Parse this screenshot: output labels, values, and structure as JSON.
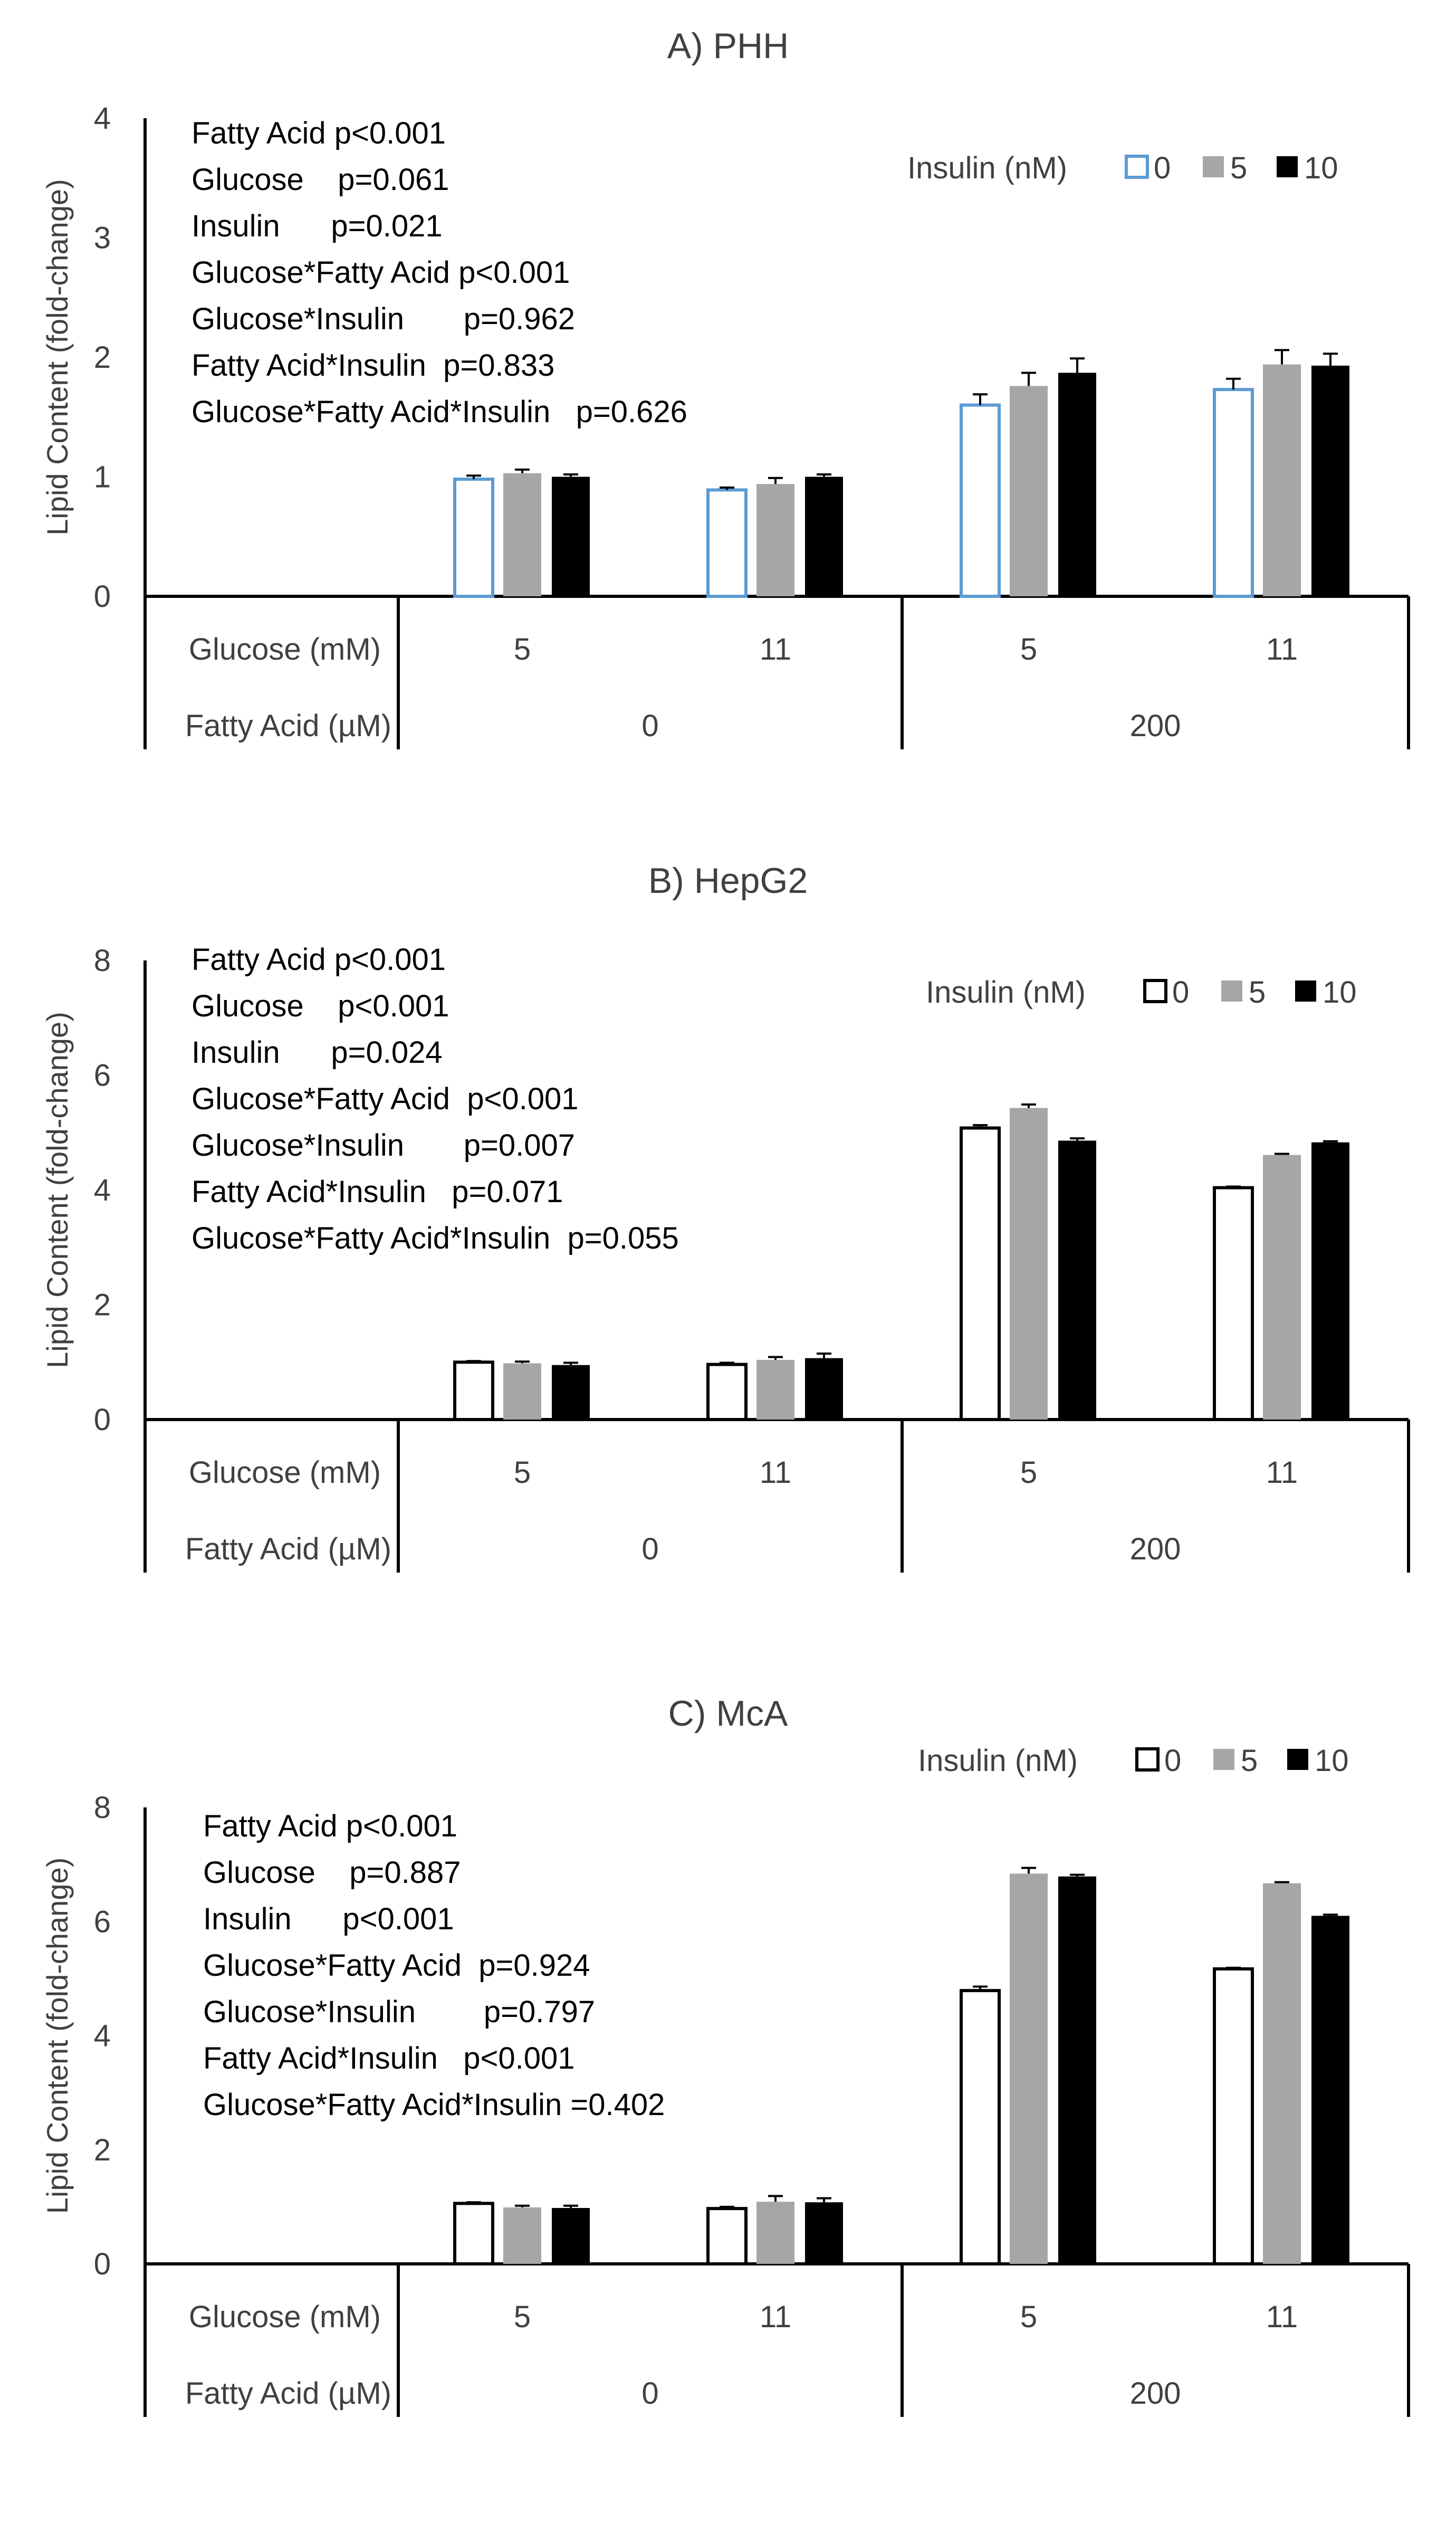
{
  "chart_data": [
    {
      "type": "bar",
      "title": "A) PHH",
      "ylabel": "Lipid Content (fold-change)",
      "ylim": [
        0,
        4
      ],
      "yticks": [
        "0",
        "1",
        "2",
        "3",
        "4"
      ],
      "categories": [
        "5",
        "11",
        "5",
        "11"
      ],
      "category_axis_label": "Glucose (mM)",
      "group_axis_label": "Fatty Acid (µM)",
      "groups": [
        "0",
        "200"
      ],
      "legend_title": "Insulin (nM)",
      "legend_placement": "top-right",
      "zero_bar_stroke": "#5B9BD5",
      "series": [
        {
          "name": "0",
          "values": [
            0.98,
            0.89,
            1.6,
            1.73
          ],
          "errors": [
            0.03,
            0.02,
            0.09,
            0.09
          ]
        },
        {
          "name": "5",
          "values": [
            1.03,
            0.94,
            1.76,
            1.94
          ],
          "errors": [
            0.03,
            0.05,
            0.11,
            0.12
          ]
        },
        {
          "name": "10",
          "values": [
            1.0,
            1.0,
            1.87,
            1.93
          ],
          "errors": [
            0.02,
            0.02,
            0.12,
            0.1
          ]
        }
      ],
      "annotations": [
        "Fatty Acid p<0.001",
        "Glucose    p=0.061",
        "Insulin      p=0.021",
        "Glucose*Fatty Acid p<0.001",
        "Glucose*Insulin       p=0.962",
        "Fatty Acid*Insulin  p=0.833",
        "Glucose*Fatty Acid*Insulin   p=0.626"
      ]
    },
    {
      "type": "bar",
      "title": "B) HepG2",
      "ylabel": "Lipid Content (fold-change)",
      "ylim": [
        0,
        8
      ],
      "yticks": [
        "0",
        "2",
        "4",
        "6",
        "8"
      ],
      "categories": [
        "5",
        "11",
        "5",
        "11"
      ],
      "category_axis_label": "Glucose (mM)",
      "group_axis_label": "Fatty Acid (µM)",
      "groups": [
        "0",
        "200"
      ],
      "legend_title": "Insulin (nM)",
      "legend_placement": "top-right",
      "zero_bar_stroke": "#000000",
      "series": [
        {
          "name": "0",
          "values": [
            1.0,
            0.96,
            5.08,
            4.04
          ],
          "errors": [
            0.02,
            0.03,
            0.05,
            0.02
          ]
        },
        {
          "name": "5",
          "values": [
            0.98,
            1.04,
            5.43,
            4.61
          ],
          "errors": [
            0.03,
            0.05,
            0.06,
            0.02
          ]
        },
        {
          "name": "10",
          "values": [
            0.95,
            1.07,
            4.86,
            4.83
          ],
          "errors": [
            0.04,
            0.08,
            0.04,
            0.02
          ]
        }
      ],
      "annotations": [
        "Fatty Acid p<0.001",
        "Glucose    p<0.001",
        "Insulin      p=0.024",
        "Glucose*Fatty Acid  p<0.001",
        "Glucose*Insulin       p=0.007",
        "Fatty Acid*Insulin   p=0.071",
        "Glucose*Fatty Acid*Insulin  p=0.055"
      ]
    },
    {
      "type": "bar",
      "title": "C) McA",
      "ylabel": "Lipid Content (fold-change)",
      "ylim": [
        0,
        8
      ],
      "yticks": [
        "0",
        "2",
        "4",
        "6",
        "8"
      ],
      "categories": [
        "5",
        "11",
        "5",
        "11"
      ],
      "category_axis_label": "Glucose (mM)",
      "group_axis_label": "Fatty Acid (µM)",
      "groups": [
        "0",
        "200"
      ],
      "legend_title": "Insulin (nM)",
      "legend_placement": "top-right",
      "zero_bar_stroke": "#000000",
      "series": [
        {
          "name": "0",
          "values": [
            1.06,
            0.97,
            4.79,
            5.17
          ],
          "errors": [
            0.02,
            0.03,
            0.07,
            0.02
          ]
        },
        {
          "name": "5",
          "values": [
            0.99,
            1.09,
            6.84,
            6.67
          ],
          "errors": [
            0.03,
            0.1,
            0.1,
            0.02
          ]
        },
        {
          "name": "10",
          "values": [
            0.98,
            1.08,
            6.79,
            6.1
          ],
          "errors": [
            0.04,
            0.07,
            0.03,
            0.02
          ]
        }
      ],
      "annotations": [
        "Fatty Acid p<0.001",
        "Glucose    p=0.887",
        "Insulin      p<0.001",
        "Glucose*Fatty Acid  p=0.924",
        "Glucose*Insulin        p=0.797",
        "Fatty Acid*Insulin   p<0.001",
        "Glucose*Fatty Acid*Insulin =0.402"
      ]
    }
  ]
}
